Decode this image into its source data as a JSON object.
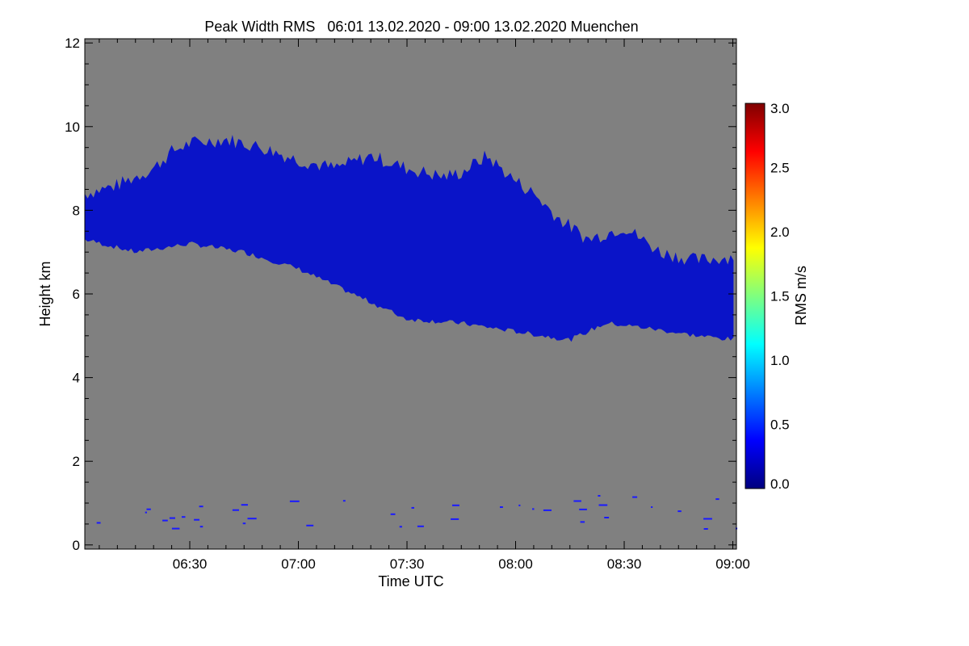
{
  "chart_data": {
    "type": "heatmap",
    "title": "Peak Width RMS   06:01 13.02.2020 - 09:00 13.02.2020 Muenchen",
    "xlabel": "Time UTC",
    "ylabel": "Height km",
    "x_tick_labels": [
      "06:30",
      "07:00",
      "07:30",
      "08:00",
      "08:30",
      "09:00"
    ],
    "x_tick_minutes": [
      390,
      420,
      450,
      480,
      510,
      540
    ],
    "xlim_minutes": [
      361,
      541
    ],
    "y_ticks": [
      0,
      2,
      4,
      6,
      8,
      10,
      12
    ],
    "ylim": [
      -0.1,
      12.1
    ],
    "background_color": "#808080",
    "colorbar": {
      "label": "RMS m/s",
      "ticks": [
        0.0,
        0.5,
        1.0,
        1.5,
        2.0,
        2.5,
        3.0
      ],
      "tick_labels": [
        "0.0",
        "0.5",
        "1.0",
        "1.5",
        "2.0",
        "2.5",
        "3.0"
      ],
      "range": [
        0.0,
        3.0
      ],
      "colormap": [
        "#00007f",
        "#0000ff",
        "#007fff",
        "#00ffff",
        "#7fff7f",
        "#ffff00",
        "#ff7f00",
        "#ff0000",
        "#7f0000"
      ]
    },
    "cloud_layer": {
      "value_rms_m_s": 0.3,
      "color": "#0a14c8",
      "top": [
        {
          "t": 361,
          "h": 8.4
        },
        {
          "t": 370,
          "h": 8.6
        },
        {
          "t": 380,
          "h": 9.0
        },
        {
          "t": 385,
          "h": 9.4
        },
        {
          "t": 390,
          "h": 9.6
        },
        {
          "t": 400,
          "h": 9.7
        },
        {
          "t": 410,
          "h": 9.5
        },
        {
          "t": 420,
          "h": 9.2
        },
        {
          "t": 430,
          "h": 9.0
        },
        {
          "t": 440,
          "h": 9.3
        },
        {
          "t": 450,
          "h": 9.0
        },
        {
          "t": 460,
          "h": 8.8
        },
        {
          "t": 465,
          "h": 8.9
        },
        {
          "t": 472,
          "h": 9.3
        },
        {
          "t": 480,
          "h": 8.7
        },
        {
          "t": 485,
          "h": 8.4
        },
        {
          "t": 492,
          "h": 7.8
        },
        {
          "t": 500,
          "h": 7.3
        },
        {
          "t": 510,
          "h": 7.6
        },
        {
          "t": 520,
          "h": 7.0
        },
        {
          "t": 530,
          "h": 6.8
        },
        {
          "t": 541,
          "h": 6.9
        }
      ],
      "base": [
        {
          "t": 361,
          "h": 7.3
        },
        {
          "t": 375,
          "h": 7.0
        },
        {
          "t": 390,
          "h": 7.2
        },
        {
          "t": 405,
          "h": 7.0
        },
        {
          "t": 420,
          "h": 6.6
        },
        {
          "t": 435,
          "h": 6.0
        },
        {
          "t": 450,
          "h": 5.4
        },
        {
          "t": 465,
          "h": 5.3
        },
        {
          "t": 480,
          "h": 5.1
        },
        {
          "t": 495,
          "h": 4.9
        },
        {
          "t": 505,
          "h": 5.3
        },
        {
          "t": 515,
          "h": 5.2
        },
        {
          "t": 530,
          "h": 5.0
        },
        {
          "t": 541,
          "h": 4.9
        }
      ]
    }
  }
}
